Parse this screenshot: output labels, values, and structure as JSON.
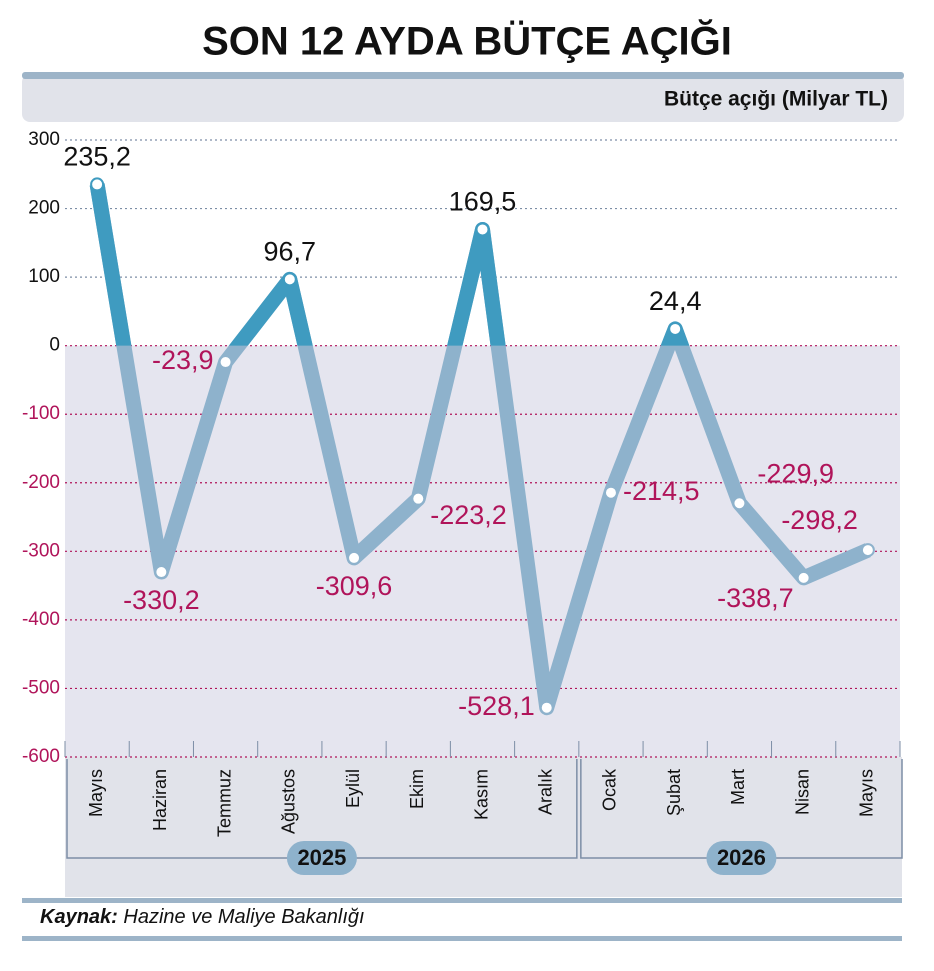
{
  "chart_data": {
    "type": "line",
    "title": "SON 12 AYDA BÜTÇE AÇIĞI",
    "ylabel": "Bütçe açığı (Milyar TL)",
    "categories": [
      "Mayıs",
      "Haziran",
      "Temmuz",
      "Ağustos",
      "Eylül",
      "Ekim",
      "Kasım",
      "Aralık",
      "Ocak",
      "Şubat",
      "Mart",
      "Nisan",
      "Mayıs"
    ],
    "category_groups": [
      {
        "label": "2025",
        "size": 8
      },
      {
        "label": "2026",
        "size": 5
      }
    ],
    "values": [
      235.2,
      -330.2,
      -23.9,
      96.7,
      -309.6,
      -223.2,
      169.5,
      -528.1,
      -214.5,
      24.4,
      -229.9,
      -338.7,
      -298.2
    ],
    "value_labels": [
      "235,2",
      "-330,2",
      "-23,9",
      "96,7",
      "-309,6",
      "-223,2",
      "169,5",
      "-528,1",
      "-214,5",
      "24,4",
      "-229,9",
      "-338,7",
      "-298,2"
    ],
    "color": "#8eb2cc",
    "positive_color": "#3f9bc0",
    "negative_label_color": "#b0145a",
    "ylim": [
      -600,
      300
    ],
    "yticks": [
      300,
      200,
      100,
      0,
      -100,
      -200,
      -300,
      -400,
      -500,
      -600
    ],
    "grid": true,
    "source": {
      "label": "Kaynak:",
      "text": "Hazine ve Maliye Bakanlığı"
    }
  }
}
